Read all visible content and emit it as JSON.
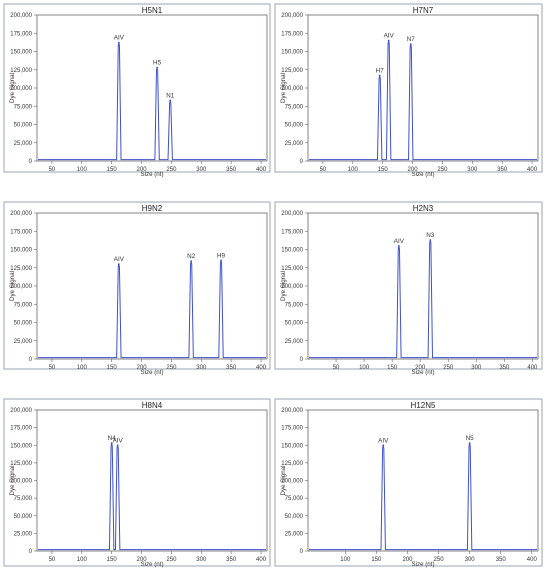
{
  "chart_data": [
    {
      "type": "line",
      "title": "H5N1",
      "xlabel": "Size (nt)",
      "ylabel": "Dye Signal",
      "xlim": [
        25,
        410
      ],
      "ylim": [
        0,
        200000
      ],
      "xticks": [
        "50",
        "100",
        "150",
        "200",
        "250",
        "300",
        "350",
        "400"
      ],
      "yticks": [
        "0",
        "25,000",
        "50,000",
        "75,000",
        "100,000",
        "125,000",
        "150,000",
        "175,000",
        "200,000"
      ],
      "grid": false,
      "series": [
        {
          "values": [
            {
              "x": 162,
              "y": 162000
            },
            {
              "x": 226,
              "y": 128000
            },
            {
              "x": 248,
              "y": 83000
            }
          ]
        }
      ],
      "annotations": [
        {
          "text": "AIV",
          "x": 162,
          "y": 162000
        },
        {
          "text": "H5",
          "x": 226,
          "y": 128000
        },
        {
          "text": "N1",
          "x": 248,
          "y": 83000
        }
      ]
    },
    {
      "type": "line",
      "title": "H7N7",
      "xlabel": "Size (nt)",
      "ylabel": "Dye Signal",
      "xlim": [
        25,
        410
      ],
      "ylim": [
        0,
        200000
      ],
      "xticks": [
        "50",
        "100",
        "150",
        "200",
        "250",
        "300",
        "350",
        "400"
      ],
      "yticks": [
        "0",
        "25,000",
        "50,000",
        "75,000",
        "100,000",
        "125,000",
        "150,000",
        "175,000",
        "200,000"
      ],
      "grid": false,
      "series": [
        {
          "values": [
            {
              "x": 145,
              "y": 117000
            },
            {
              "x": 160,
              "y": 165000
            },
            {
              "x": 197,
              "y": 160000
            }
          ]
        }
      ],
      "annotations": [
        {
          "text": "H7",
          "x": 145,
          "y": 117000
        },
        {
          "text": "AIV",
          "x": 160,
          "y": 165000
        },
        {
          "text": "N7",
          "x": 197,
          "y": 160000
        }
      ]
    },
    {
      "type": "line",
      "title": "H9N2",
      "xlabel": "Size (nt)",
      "ylabel": "Dye Signal",
      "xlim": [
        25,
        410
      ],
      "ylim": [
        0,
        200000
      ],
      "xticks": [
        "50",
        "100",
        "150",
        "200",
        "250",
        "300",
        "350",
        "400"
      ],
      "yticks": [
        "0",
        "25,000",
        "50,000",
        "75,000",
        "100,000",
        "125,000",
        "150,000",
        "175,000",
        "200,000"
      ],
      "grid": false,
      "series": [
        {
          "values": [
            {
              "x": 162,
              "y": 130000
            },
            {
              "x": 283,
              "y": 134000
            },
            {
              "x": 333,
              "y": 135000
            }
          ]
        }
      ],
      "annotations": [
        {
          "text": "AIV",
          "x": 162,
          "y": 130000
        },
        {
          "text": "N2",
          "x": 283,
          "y": 134000
        },
        {
          "text": "H9",
          "x": 333,
          "y": 135000
        }
      ]
    },
    {
      "type": "line",
      "title": "H2N3",
      "xlabel": "Size (nt)",
      "ylabel": "Dye Signal",
      "xlim": [
        0,
        410
      ],
      "ylim": [
        0,
        200000
      ],
      "xticks": [
        "50",
        "100",
        "150",
        "200",
        "250",
        "300",
        "350",
        "400"
      ],
      "yticks": [
        "0",
        "25,000",
        "50,000",
        "75,000",
        "100,000",
        "125,000",
        "150,000",
        "175,000",
        "200,000"
      ],
      "grid": false,
      "series": [
        {
          "values": [
            {
              "x": 162,
              "y": 155000
            },
            {
              "x": 218,
              "y": 163000
            }
          ]
        }
      ],
      "annotations": [
        {
          "text": "AIV",
          "x": 162,
          "y": 155000
        },
        {
          "text": "N3",
          "x": 218,
          "y": 163000
        }
      ]
    },
    {
      "type": "line",
      "title": "H8N4",
      "xlabel": "Size (nt)",
      "ylabel": "Dye Signal",
      "xlim": [
        25,
        410
      ],
      "ylim": [
        0,
        200000
      ],
      "xticks": [
        "50",
        "100",
        "150",
        "200",
        "250",
        "300",
        "350",
        "400"
      ],
      "yticks": [
        "0",
        "25,000",
        "50,000",
        "75,000",
        "100,000",
        "125,000",
        "150,000",
        "175,000",
        "200,000"
      ],
      "grid": false,
      "series": [
        {
          "values": [
            {
              "x": 150,
              "y": 153000
            },
            {
              "x": 160,
              "y": 150000
            }
          ]
        }
      ],
      "annotations": [
        {
          "text": "N4",
          "x": 150,
          "y": 153000
        },
        {
          "text": "AIV",
          "x": 160,
          "y": 150000
        }
      ]
    },
    {
      "type": "line",
      "title": "H12N5",
      "xlabel": "Size (nt)",
      "ylabel": "Dye Signal",
      "xlim": [
        40,
        410
      ],
      "ylim": [
        0,
        200000
      ],
      "xticks": [
        "100",
        "150",
        "200",
        "250",
        "300",
        "350",
        "400"
      ],
      "yticks": [
        "0",
        "25,000",
        "50,000",
        "75,000",
        "100,000",
        "125,000",
        "150,000",
        "175,000",
        "200,000"
      ],
      "grid": false,
      "series": [
        {
          "values": [
            {
              "x": 161,
              "y": 150000
            },
            {
              "x": 300,
              "y": 153000
            }
          ]
        }
      ],
      "annotations": [
        {
          "text": "AIV",
          "x": 161,
          "y": 150000
        },
        {
          "text": "N5",
          "x": 300,
          "y": 153000
        }
      ]
    }
  ]
}
